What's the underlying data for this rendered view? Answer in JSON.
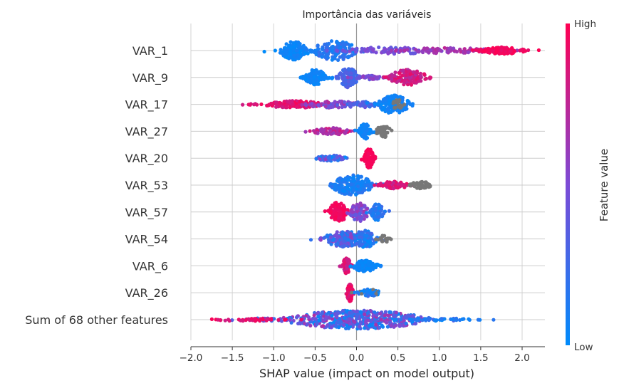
{
  "chart_data": {
    "type": "scatter",
    "subtype": "shap-beeswarm",
    "title": "Importância das variáveis",
    "xlabel": "SHAP value (impact on model output)",
    "xlim": [
      -2.2,
      2.3
    ],
    "xticks": [
      -2.0,
      -1.5,
      -1.0,
      -0.5,
      0.0,
      0.5,
      1.0,
      1.5,
      2.0
    ],
    "xtick_labels": [
      "−2.0",
      "−1.5",
      "−1.0",
      "−0.5",
      "0.0",
      "0.5",
      "1.0",
      "1.5",
      "2.0"
    ],
    "grid": true,
    "colorbar": {
      "label": "Feature value",
      "high_label": "High",
      "low_label": "Low",
      "low_color": "#008bfb",
      "high_color": "#ff0052",
      "missing_color": "#777777"
    },
    "features": [
      {
        "name": "VAR_1",
        "clusters": [
          {
            "center": -0.75,
            "spread": 0.09,
            "n": 140,
            "width": 13,
            "v": 0.05,
            "vs": 0.05
          },
          {
            "center": -0.25,
            "spread": 0.14,
            "n": 140,
            "width": 14,
            "v": 0.15,
            "vs": 0.1
          },
          {
            "center": 0.4,
            "spread": 0.3,
            "n": 80,
            "width": 5,
            "v": 0.45,
            "vs": 0.1
          },
          {
            "center": 1.1,
            "spread": 0.3,
            "n": 80,
            "width": 4,
            "v": 0.65,
            "vs": 0.1
          },
          {
            "center": 1.75,
            "spread": 0.15,
            "n": 110,
            "width": 5,
            "v": 0.95,
            "vs": 0.05
          }
        ]
      },
      {
        "name": "VAR_9",
        "clusters": [
          {
            "center": -0.5,
            "spread": 0.07,
            "n": 120,
            "width": 11,
            "v": 0.05,
            "vs": 0.04
          },
          {
            "center": -0.1,
            "spread": 0.06,
            "n": 120,
            "width": 14,
            "v": 0.3,
            "vs": 0.08
          },
          {
            "center": 0.15,
            "spread": 0.1,
            "n": 40,
            "width": 3,
            "v": 0.5,
            "vs": 0.1
          },
          {
            "center": 0.62,
            "spread": 0.12,
            "n": 140,
            "width": 11,
            "v": 0.8,
            "vs": 0.12
          }
        ]
      },
      {
        "name": "VAR_17",
        "clusters": [
          {
            "center": -0.75,
            "spread": 0.2,
            "n": 150,
            "width": 5,
            "v": 0.88,
            "vs": 0.1
          },
          {
            "center": -0.25,
            "spread": 0.18,
            "n": 80,
            "width": 5,
            "v": 0.55,
            "vs": 0.2
          },
          {
            "center": 0.1,
            "spread": 0.1,
            "n": 60,
            "width": 4,
            "v": 0.3,
            "vs": 0.15
          },
          {
            "center": 0.45,
            "spread": 0.1,
            "n": 140,
            "width": 13,
            "v": 0.06,
            "vs": 0.05
          },
          {
            "center": 0.5,
            "spread": 0.04,
            "n": 20,
            "width": 7,
            "v": -1,
            "vs": 0
          }
        ]
      },
      {
        "name": "VAR_27",
        "clusters": [
          {
            "center": -0.3,
            "spread": 0.13,
            "n": 70,
            "width": 5,
            "v": 0.75,
            "vs": 0.15
          },
          {
            "center": 0.1,
            "spread": 0.04,
            "n": 70,
            "width": 11,
            "v": 0.05,
            "vs": 0.04
          },
          {
            "center": 0.32,
            "spread": 0.05,
            "n": 40,
            "width": 9,
            "v": -1,
            "vs": 0
          }
        ]
      },
      {
        "name": "VAR_20",
        "clusters": [
          {
            "center": -0.3,
            "spread": 0.1,
            "n": 60,
            "width": 4,
            "v": 0.3,
            "vs": 0.3
          },
          {
            "center": 0.15,
            "spread": 0.03,
            "n": 110,
            "width": 14,
            "v": 0.97,
            "vs": 0.03
          }
        ]
      },
      {
        "name": "VAR_53",
        "clusters": [
          {
            "center": -0.05,
            "spread": 0.13,
            "n": 200,
            "width": 14,
            "v": 0.1,
            "vs": 0.08
          },
          {
            "center": 0.45,
            "spread": 0.1,
            "n": 70,
            "width": 5,
            "v": 0.85,
            "vs": 0.1
          },
          {
            "center": 0.78,
            "spread": 0.07,
            "n": 40,
            "width": 5,
            "v": -1,
            "vs": 0
          }
        ]
      },
      {
        "name": "VAR_57",
        "clusters": [
          {
            "center": -0.22,
            "spread": 0.06,
            "n": 110,
            "width": 14,
            "v": 0.95,
            "vs": 0.04
          },
          {
            "center": 0.03,
            "spread": 0.06,
            "n": 90,
            "width": 13,
            "v": 0.5,
            "vs": 0.15
          },
          {
            "center": 0.25,
            "spread": 0.04,
            "n": 70,
            "width": 12,
            "v": 0.15,
            "vs": 0.1
          }
        ]
      },
      {
        "name": "VAR_54",
        "clusters": [
          {
            "center": -0.15,
            "spread": 0.13,
            "n": 140,
            "width": 11,
            "v": 0.35,
            "vs": 0.25
          },
          {
            "center": 0.1,
            "spread": 0.08,
            "n": 110,
            "width": 12,
            "v": 0.15,
            "vs": 0.15
          },
          {
            "center": 0.33,
            "spread": 0.04,
            "n": 20,
            "width": 5,
            "v": -1,
            "vs": 0
          }
        ]
      },
      {
        "name": "VAR_6",
        "clusters": [
          {
            "center": -0.12,
            "spread": 0.03,
            "n": 80,
            "width": 11,
            "v": 0.85,
            "vs": 0.1
          },
          {
            "center": 0.1,
            "spread": 0.08,
            "n": 120,
            "width": 8,
            "v": 0.05,
            "vs": 0.04
          }
        ]
      },
      {
        "name": "VAR_26",
        "clusters": [
          {
            "center": -0.08,
            "spread": 0.02,
            "n": 80,
            "width": 12,
            "v": 0.9,
            "vs": 0.08
          },
          {
            "center": 0.15,
            "spread": 0.07,
            "n": 70,
            "width": 5,
            "v": 0.1,
            "vs": 0.15
          }
        ]
      },
      {
        "name": "Sum of 68 other features",
        "clusters": [
          {
            "center": 0.0,
            "spread": 0.45,
            "n": 500,
            "width": 13,
            "v": 0.35,
            "vs": 0.35
          },
          {
            "center": -1.3,
            "spread": 0.25,
            "n": 40,
            "width": 2,
            "v": 0.9,
            "vs": 0.1
          },
          {
            "center": 1.0,
            "spread": 0.25,
            "n": 40,
            "width": 2,
            "v": 0.1,
            "vs": 0.1
          }
        ]
      }
    ]
  }
}
